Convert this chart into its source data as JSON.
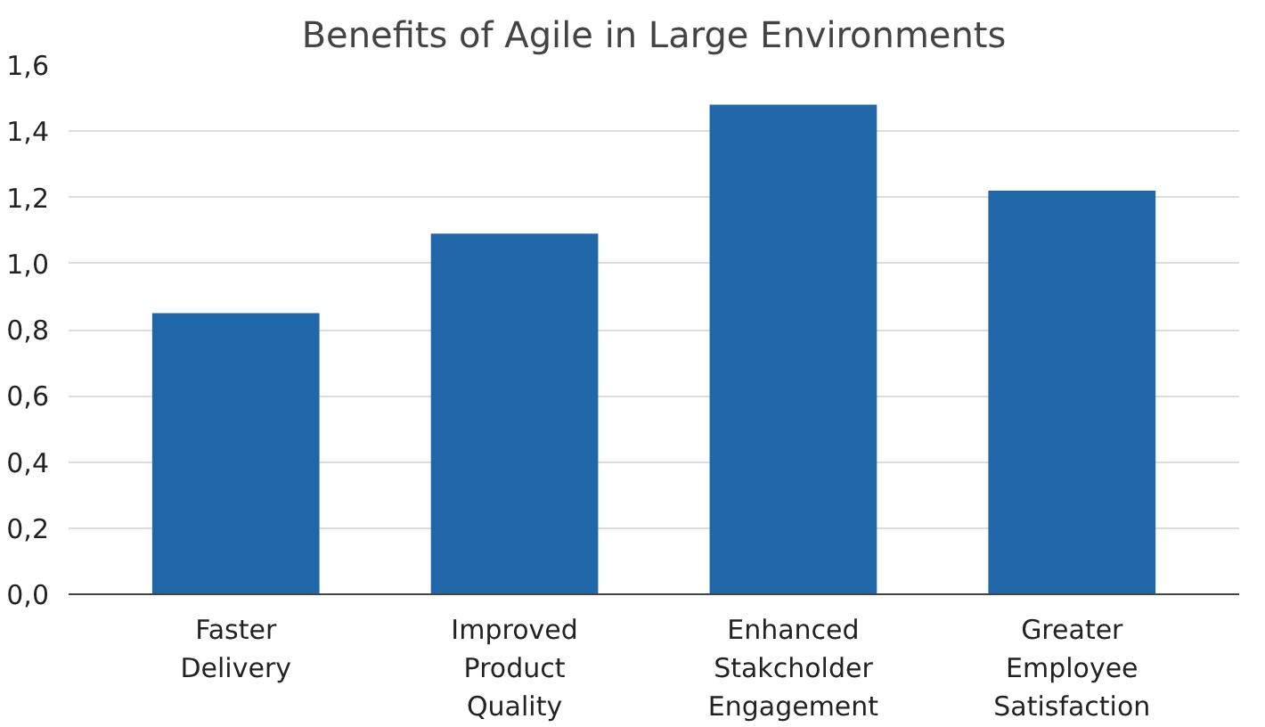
{
  "chart_data": {
    "type": "bar",
    "title": "Benefits of Agile in Large Environments",
    "categories": [
      "Faster Delivery",
      "Improved Product Quality",
      "Enhanced Stakcholder Engagement",
      "Greater Employee Satisfaction"
    ],
    "values": [
      0.85,
      1.09,
      1.48,
      1.22
    ],
    "color": "#1f67a8",
    "ylim": [
      0,
      1.6
    ],
    "yticks": [
      {
        "value": 0,
        "label": "0,0"
      },
      {
        "value": 0.2,
        "label": "0,2"
      },
      {
        "value": 0.4,
        "label": "0,4"
      },
      {
        "value": 0.6,
        "label": "0,6"
      },
      {
        "value": 0.8,
        "label": "0,8"
      },
      {
        "value": 1.0,
        "label": "1,0"
      },
      {
        "value": 1.2,
        "label": "1,2"
      },
      {
        "value": 1.4,
        "label": "1,4"
      },
      {
        "value": 1.6,
        "label": "1,6"
      }
    ],
    "grid": "y"
  }
}
